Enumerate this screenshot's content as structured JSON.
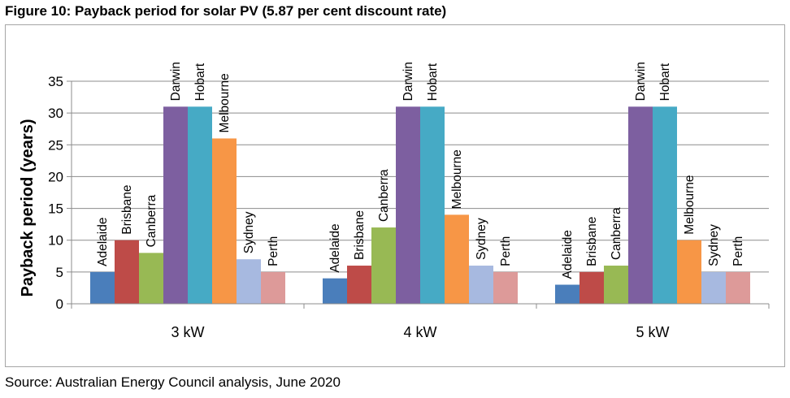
{
  "figure": {
    "title": "Figure 10: Payback period for solar PV (5.87 per cent discount rate)",
    "source": "Source: Australian Energy Council analysis, June 2020"
  },
  "colors": {
    "Adelaide": "#4a7ebb",
    "Brisbane": "#be4b48",
    "Canberra": "#98b954",
    "Darwin": "#7d5fa0",
    "Hobart": "#46aac5",
    "Melbourne": "#f79646",
    "Sydney": "#a7b9e0",
    "Perth": "#dd9a99"
  },
  "chart_data": {
    "type": "bar",
    "categories": [
      "3 kW",
      "4 kW",
      "5 kW"
    ],
    "series": [
      {
        "name": "Adelaide",
        "values": [
          5,
          4,
          3
        ]
      },
      {
        "name": "Brisbane",
        "values": [
          10,
          6,
          5
        ]
      },
      {
        "name": "Canberra",
        "values": [
          8,
          12,
          6
        ]
      },
      {
        "name": "Darwin",
        "values": [
          31,
          31,
          31
        ]
      },
      {
        "name": "Hobart",
        "values": [
          31,
          31,
          31
        ]
      },
      {
        "name": "Melbourne",
        "values": [
          26,
          14,
          10
        ]
      },
      {
        "name": "Sydney",
        "values": [
          7,
          6,
          5
        ]
      },
      {
        "name": "Perth",
        "values": [
          5,
          5,
          5
        ]
      }
    ],
    "ylabel": "Payback period (years)",
    "xlabel": "",
    "ylim": [
      0,
      35
    ],
    "yticks": [
      0,
      5,
      10,
      15,
      20,
      25,
      30,
      35
    ],
    "grid": true,
    "legend": "none (series names written above each bar)"
  }
}
